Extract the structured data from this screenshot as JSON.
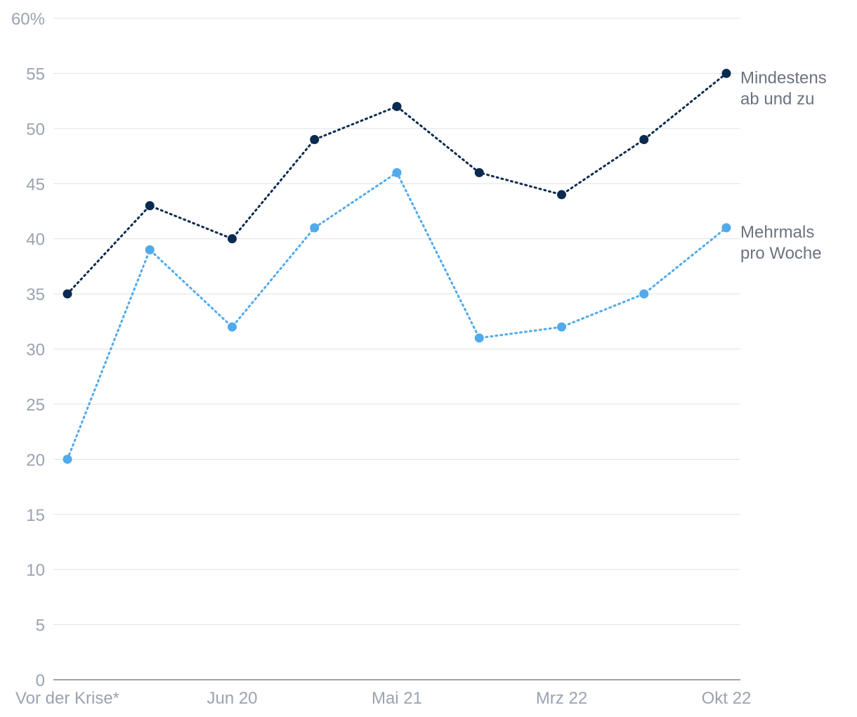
{
  "chart_data": {
    "type": "line",
    "categories": [
      "Vor der Krise*",
      "",
      "Jun 20",
      "",
      "Mai 21",
      "",
      "Mrz 22",
      "",
      "Okt 22"
    ],
    "x_tick_labels": [
      "Vor der Krise*",
      "Jun 20",
      "Mai 21",
      "Mrz 22",
      "Okt 22"
    ],
    "y_tick_labels": [
      "60%",
      "55",
      "50",
      "45",
      "40",
      "35",
      "30",
      "25",
      "20",
      "15",
      "10",
      "5",
      "0"
    ],
    "ylim": [
      0,
      60
    ],
    "grid": true,
    "series": [
      {
        "name": "Mindestens ab und zu",
        "label_lines": [
          "Mindestens",
          "ab und zu"
        ],
        "color": "#0b2a4f",
        "values": [
          35,
          43,
          40,
          49,
          52,
          46,
          44,
          49,
          55
        ]
      },
      {
        "name": "Mehrmals pro Woche",
        "label_lines": [
          "Mehrmals",
          "pro Woche"
        ],
        "color": "#51aaeb",
        "values": [
          20,
          39,
          32,
          41,
          46,
          31,
          32,
          35,
          41
        ]
      }
    ]
  }
}
